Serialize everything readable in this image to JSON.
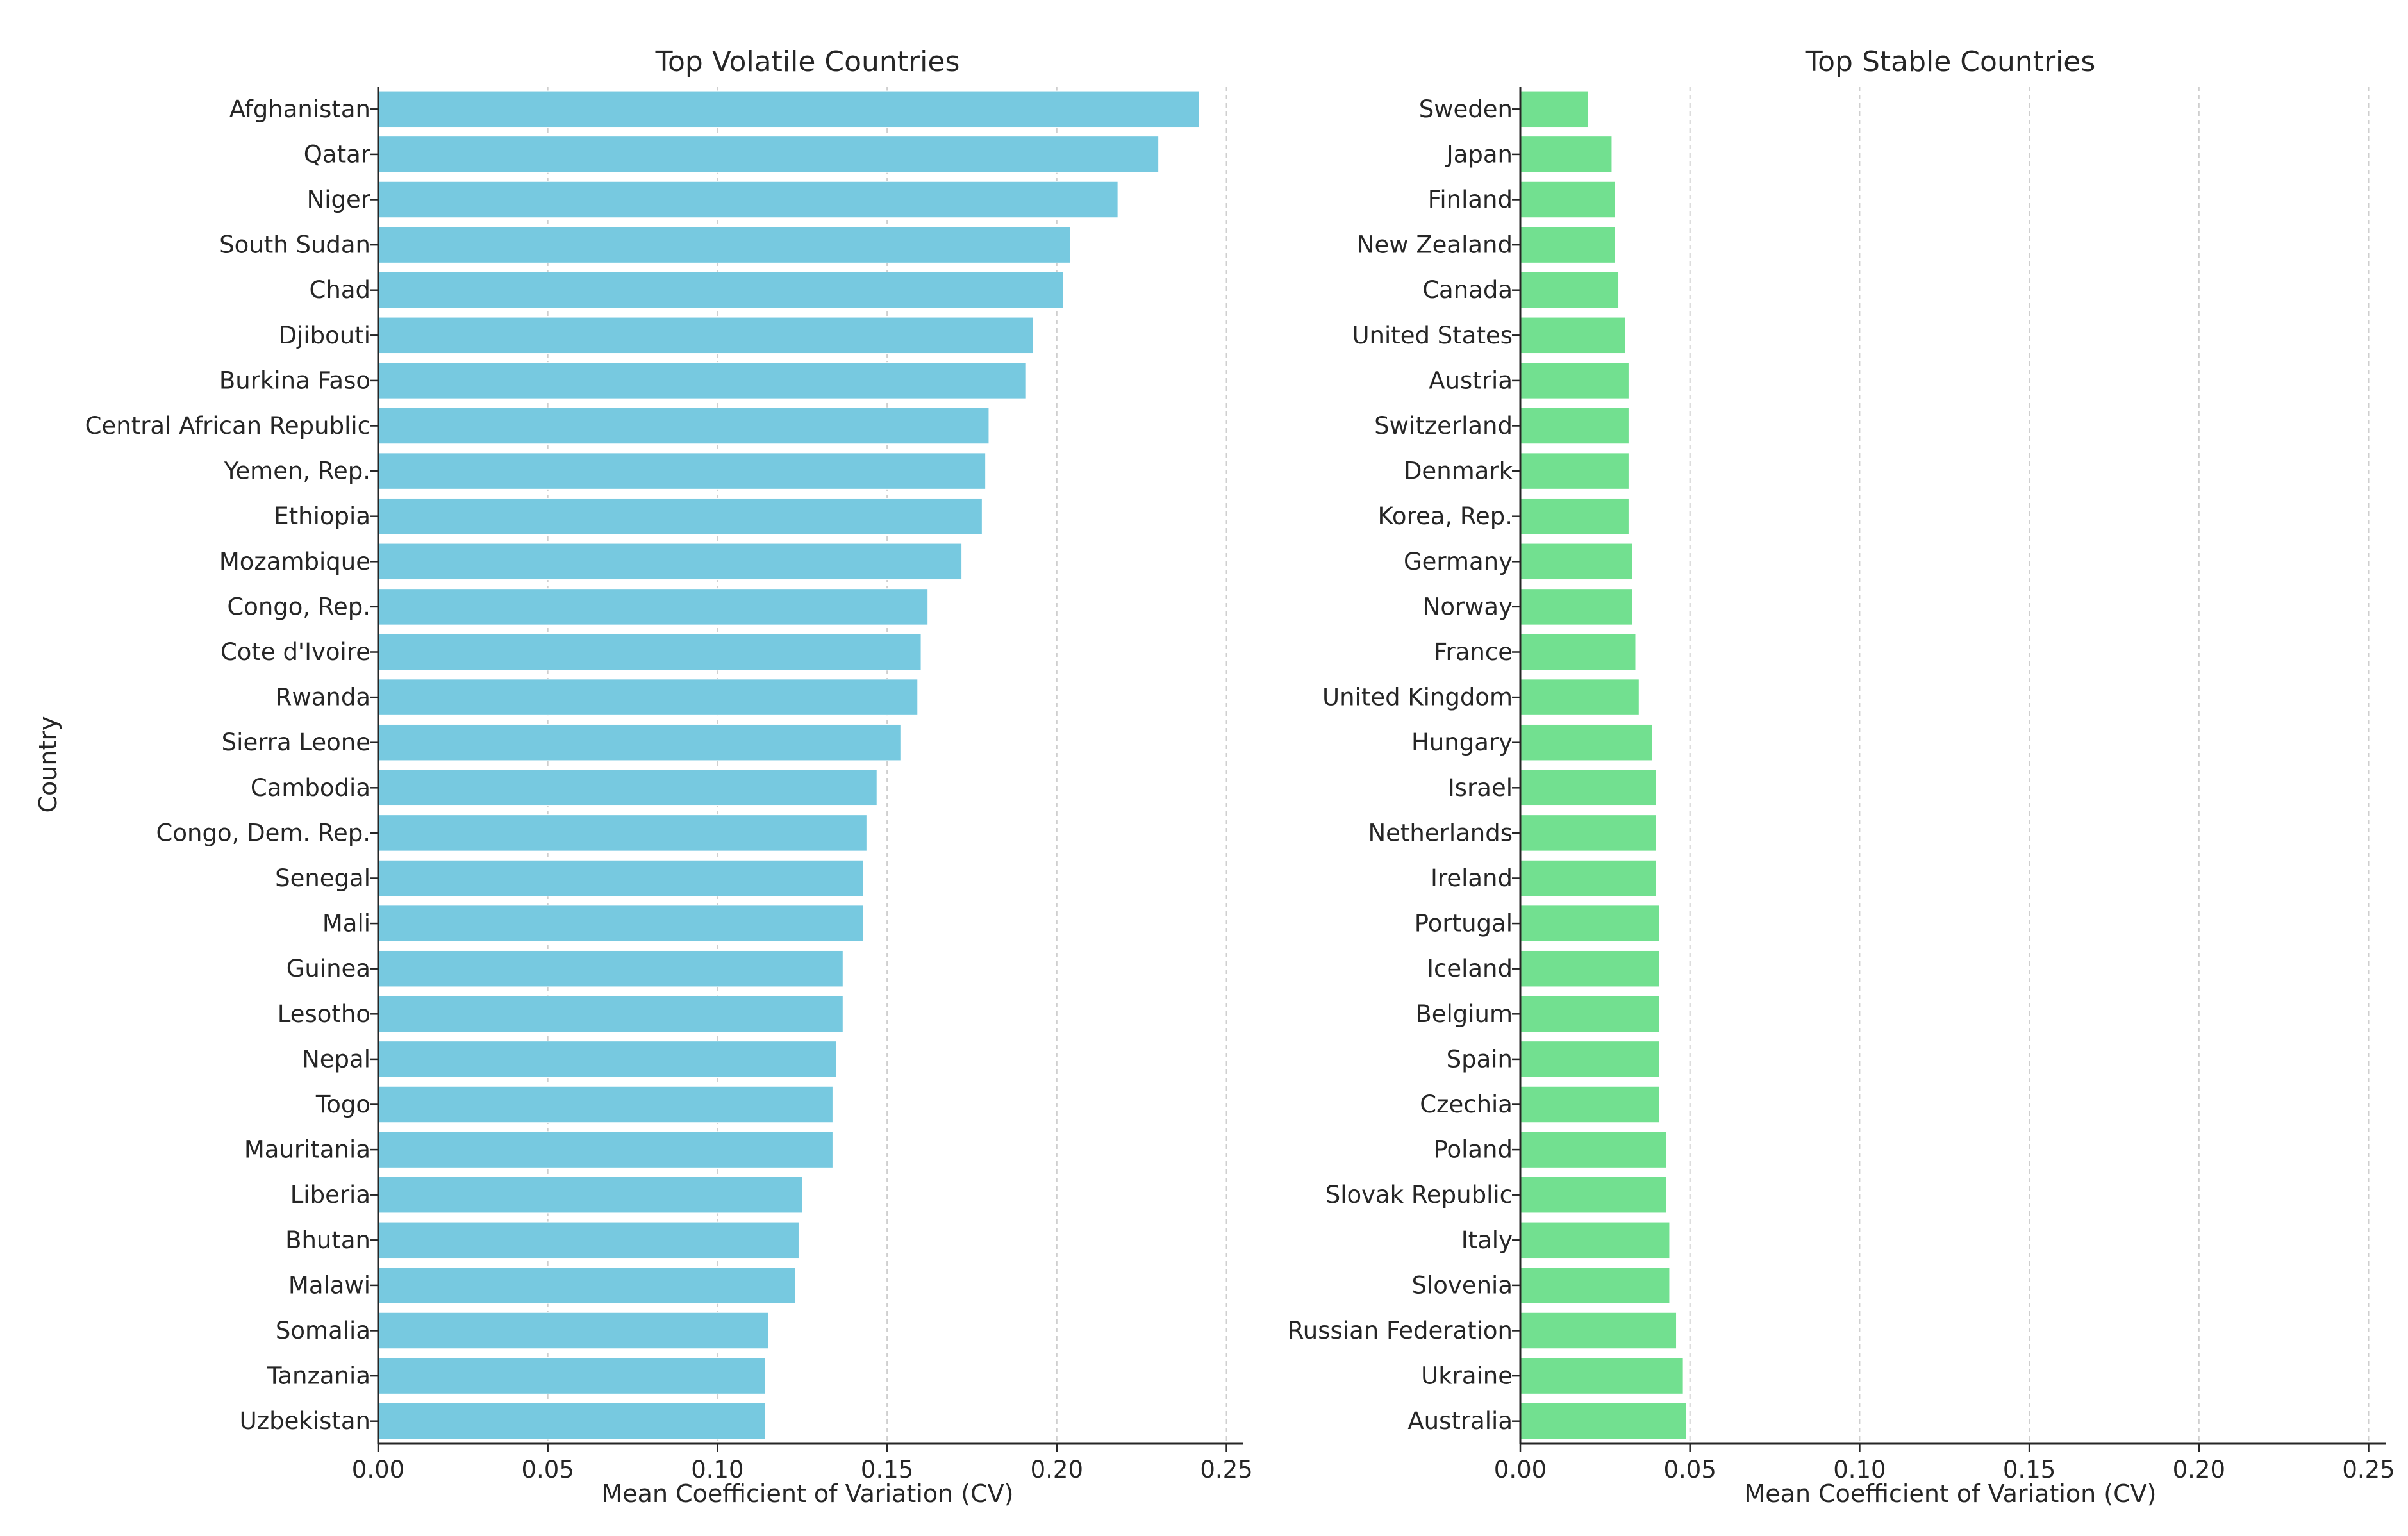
{
  "chart_data": [
    {
      "type": "bar",
      "orientation": "horizontal",
      "title": "Top Volatile Countries",
      "xlabel": "Mean Coefficient of Variation (CV)",
      "ylabel": "Country",
      "xlim": [
        0,
        0.255
      ],
      "xticks": [
        0.0,
        0.05,
        0.1,
        0.15,
        0.2,
        0.25
      ],
      "xtick_labels": [
        "0.00",
        "0.05",
        "0.10",
        "0.15",
        "0.20",
        "0.25"
      ],
      "grid": true,
      "color": "#77c9e0",
      "categories": [
        "Afghanistan",
        "Qatar",
        "Niger",
        "South Sudan",
        "Chad",
        "Djibouti",
        "Burkina Faso",
        "Central African Republic",
        "Yemen, Rep.",
        "Ethiopia",
        "Mozambique",
        "Congo, Rep.",
        "Cote d'Ivoire",
        "Rwanda",
        "Sierra Leone",
        "Cambodia",
        "Congo, Dem. Rep.",
        "Senegal",
        "Mali",
        "Guinea",
        "Lesotho",
        "Nepal",
        "Togo",
        "Mauritania",
        "Liberia",
        "Bhutan",
        "Malawi",
        "Somalia",
        "Tanzania",
        "Uzbekistan"
      ],
      "values": [
        0.242,
        0.23,
        0.218,
        0.204,
        0.202,
        0.193,
        0.191,
        0.18,
        0.179,
        0.178,
        0.172,
        0.162,
        0.16,
        0.159,
        0.154,
        0.147,
        0.144,
        0.143,
        0.143,
        0.137,
        0.137,
        0.135,
        0.134,
        0.134,
        0.125,
        0.124,
        0.123,
        0.115,
        0.114,
        0.114
      ]
    },
    {
      "type": "bar",
      "orientation": "horizontal",
      "title": "Top Stable Countries",
      "xlabel": "Mean Coefficient of Variation (CV)",
      "ylabel": "",
      "xlim": [
        0,
        0.255
      ],
      "xticks": [
        0.0,
        0.05,
        0.1,
        0.15,
        0.2,
        0.25
      ],
      "xtick_labels": [
        "0.00",
        "0.05",
        "0.10",
        "0.15",
        "0.20",
        "0.25"
      ],
      "grid": true,
      "color": "#72e090",
      "categories": [
        "Sweden",
        "Japan",
        "Finland",
        "New Zealand",
        "Canada",
        "United States",
        "Austria",
        "Switzerland",
        "Denmark",
        "Korea, Rep.",
        "Germany",
        "Norway",
        "France",
        "United Kingdom",
        "Hungary",
        "Israel",
        "Netherlands",
        "Ireland",
        "Portugal",
        "Iceland",
        "Belgium",
        "Spain",
        "Czechia",
        "Poland",
        "Slovak Republic",
        "Italy",
        "Slovenia",
        "Russian Federation",
        "Ukraine",
        "Australia"
      ],
      "values": [
        0.02,
        0.027,
        0.028,
        0.028,
        0.029,
        0.031,
        0.032,
        0.032,
        0.032,
        0.032,
        0.033,
        0.033,
        0.034,
        0.035,
        0.039,
        0.04,
        0.04,
        0.04,
        0.041,
        0.041,
        0.041,
        0.041,
        0.041,
        0.043,
        0.043,
        0.044,
        0.044,
        0.046,
        0.048,
        0.049
      ]
    }
  ]
}
